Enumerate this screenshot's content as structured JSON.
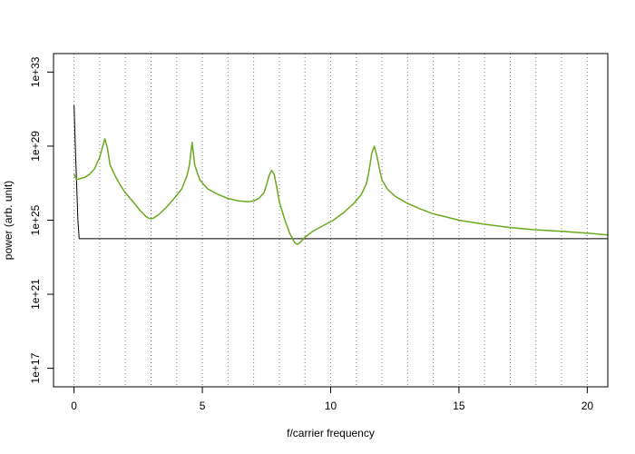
{
  "chart_data": {
    "type": "line",
    "title": "",
    "xlabel": "f/carrier frequency",
    "ylabel": "power (arb. unit)",
    "xlim": [
      -0.8,
      20.8
    ],
    "y_scale": "log10",
    "ylim": [
      1e+16,
      1e+34
    ],
    "x_ticks": [
      0,
      5,
      10,
      15,
      20
    ],
    "x_tick_labels": [
      "0",
      "5",
      "10",
      "15",
      "20"
    ],
    "y_ticks": [
      1e+17,
      1e+21,
      1e+25,
      1e+29,
      1e+33
    ],
    "y_tick_labels": [
      "1e+17",
      "1e+21",
      "1e+25",
      "1e+29",
      "1e+33"
    ],
    "vertical_gridlines": [
      0,
      1,
      2,
      3,
      4,
      5,
      6,
      7,
      8,
      9,
      10,
      11,
      12,
      13,
      14,
      15,
      16,
      17,
      18,
      19,
      20
    ],
    "grid_style": "dotted",
    "series": [
      {
        "color": "#000000",
        "x": [
          0.0,
          0.05,
          0.1,
          0.15,
          0.2,
          1,
          5,
          10,
          15,
          20,
          20.8
        ],
        "y": [
          1.6e+31,
          1e+29,
          1e+27,
          1e+25,
          1e+24,
          1e+24,
          1e+24,
          1e+24,
          1e+24,
          1e+24,
          1e+24
        ]
      },
      {
        "color": "#6aaa1e",
        "x": [
          0.0,
          0.1,
          0.2,
          0.4,
          0.6,
          0.8,
          1.0,
          1.1,
          1.2,
          1.3,
          1.4,
          1.6,
          1.8,
          2.0,
          2.3,
          2.6,
          2.8,
          2.9,
          3.0,
          3.1,
          3.3,
          3.6,
          3.9,
          4.2,
          4.4,
          4.5,
          4.6,
          4.7,
          4.9,
          5.2,
          5.6,
          6.0,
          6.4,
          6.8,
          7.0,
          7.2,
          7.4,
          7.5,
          7.6,
          7.7,
          7.8,
          7.9,
          8.0,
          8.2,
          8.4,
          8.6,
          8.7,
          8.8,
          9.0,
          9.3,
          9.7,
          10.1,
          10.5,
          10.9,
          11.2,
          11.4,
          11.5,
          11.6,
          11.7,
          11.8,
          11.9,
          12.0,
          12.2,
          12.5,
          13.0,
          13.5,
          14.0,
          14.5,
          15.0,
          16.0,
          17.0,
          18.0,
          19.0,
          20.0,
          20.8
        ],
        "y": [
          3e+27,
          1.6e+27,
          1.7e+27,
          2e+27,
          3e+27,
          6e+27,
          2.5e+28,
          8e+28,
          2.5e+29,
          8e+28,
          1e+28,
          2.5e+27,
          8e+26,
          3e+26,
          1e+26,
          3e+25,
          1.6e+25,
          1.3e+25,
          1.2e+25,
          1.3e+25,
          2e+25,
          5e+25,
          1.5e+26,
          5e+26,
          2.5e+27,
          1e+28,
          1.6e+29,
          1e+28,
          1.5e+27,
          5e+26,
          2.5e+26,
          1.5e+26,
          1.1e+26,
          1e+26,
          1.1e+26,
          1.5e+26,
          3e+26,
          8e+26,
          2.5e+27,
          5e+27,
          3e+27,
          6e+26,
          1e+26,
          1.2e+25,
          2e+24,
          6e+23,
          5e+23,
          6e+23,
          1.2e+24,
          2.5e+24,
          5e+24,
          1e+25,
          2.5e+25,
          8e+25,
          2.5e+26,
          1e+27,
          5e+27,
          4e+28,
          1e+29,
          3e+28,
          6e+27,
          1.5e+27,
          5e+26,
          2e+26,
          8e+25,
          4e+25,
          2.2e+25,
          1.5e+25,
          1e+25,
          6e+24,
          4e+24,
          3e+24,
          2.5e+24,
          2e+24,
          1.6e+24
        ]
      }
    ]
  }
}
